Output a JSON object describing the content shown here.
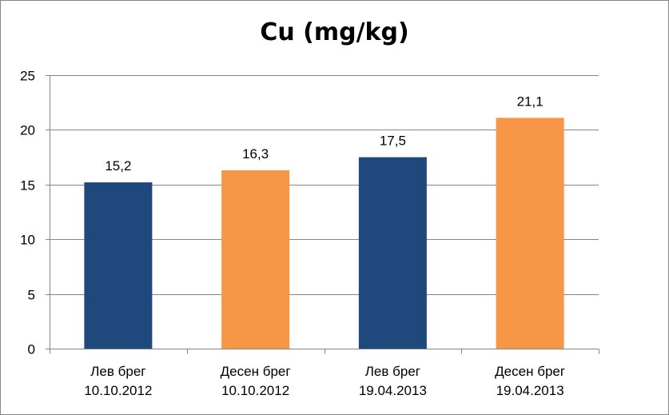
{
  "chart_data": {
    "type": "bar",
    "title": "Cu (mg/kg)",
    "xlabel": "",
    "ylabel": "",
    "ylim": [
      0,
      25
    ],
    "yticks": [
      0,
      5,
      10,
      15,
      20,
      25
    ],
    "grid": true,
    "legend": "none",
    "categories": [
      [
        "Лев брег",
        "10.10.2012"
      ],
      [
        "Десен брег",
        "10.10.2012"
      ],
      [
        "Лев брег",
        "19.04.2013"
      ],
      [
        "Десен брег",
        "19.04.2013"
      ]
    ],
    "values": [
      15.2,
      16.3,
      17.5,
      21.1
    ],
    "data_labels": [
      "15,2",
      "16,3",
      "17,5",
      "21,1"
    ],
    "colors": [
      "#1F497D",
      "#F79646",
      "#1F497D",
      "#F79646"
    ]
  },
  "style": {
    "gridline_color": "#868686",
    "axis_color": "#868686"
  }
}
